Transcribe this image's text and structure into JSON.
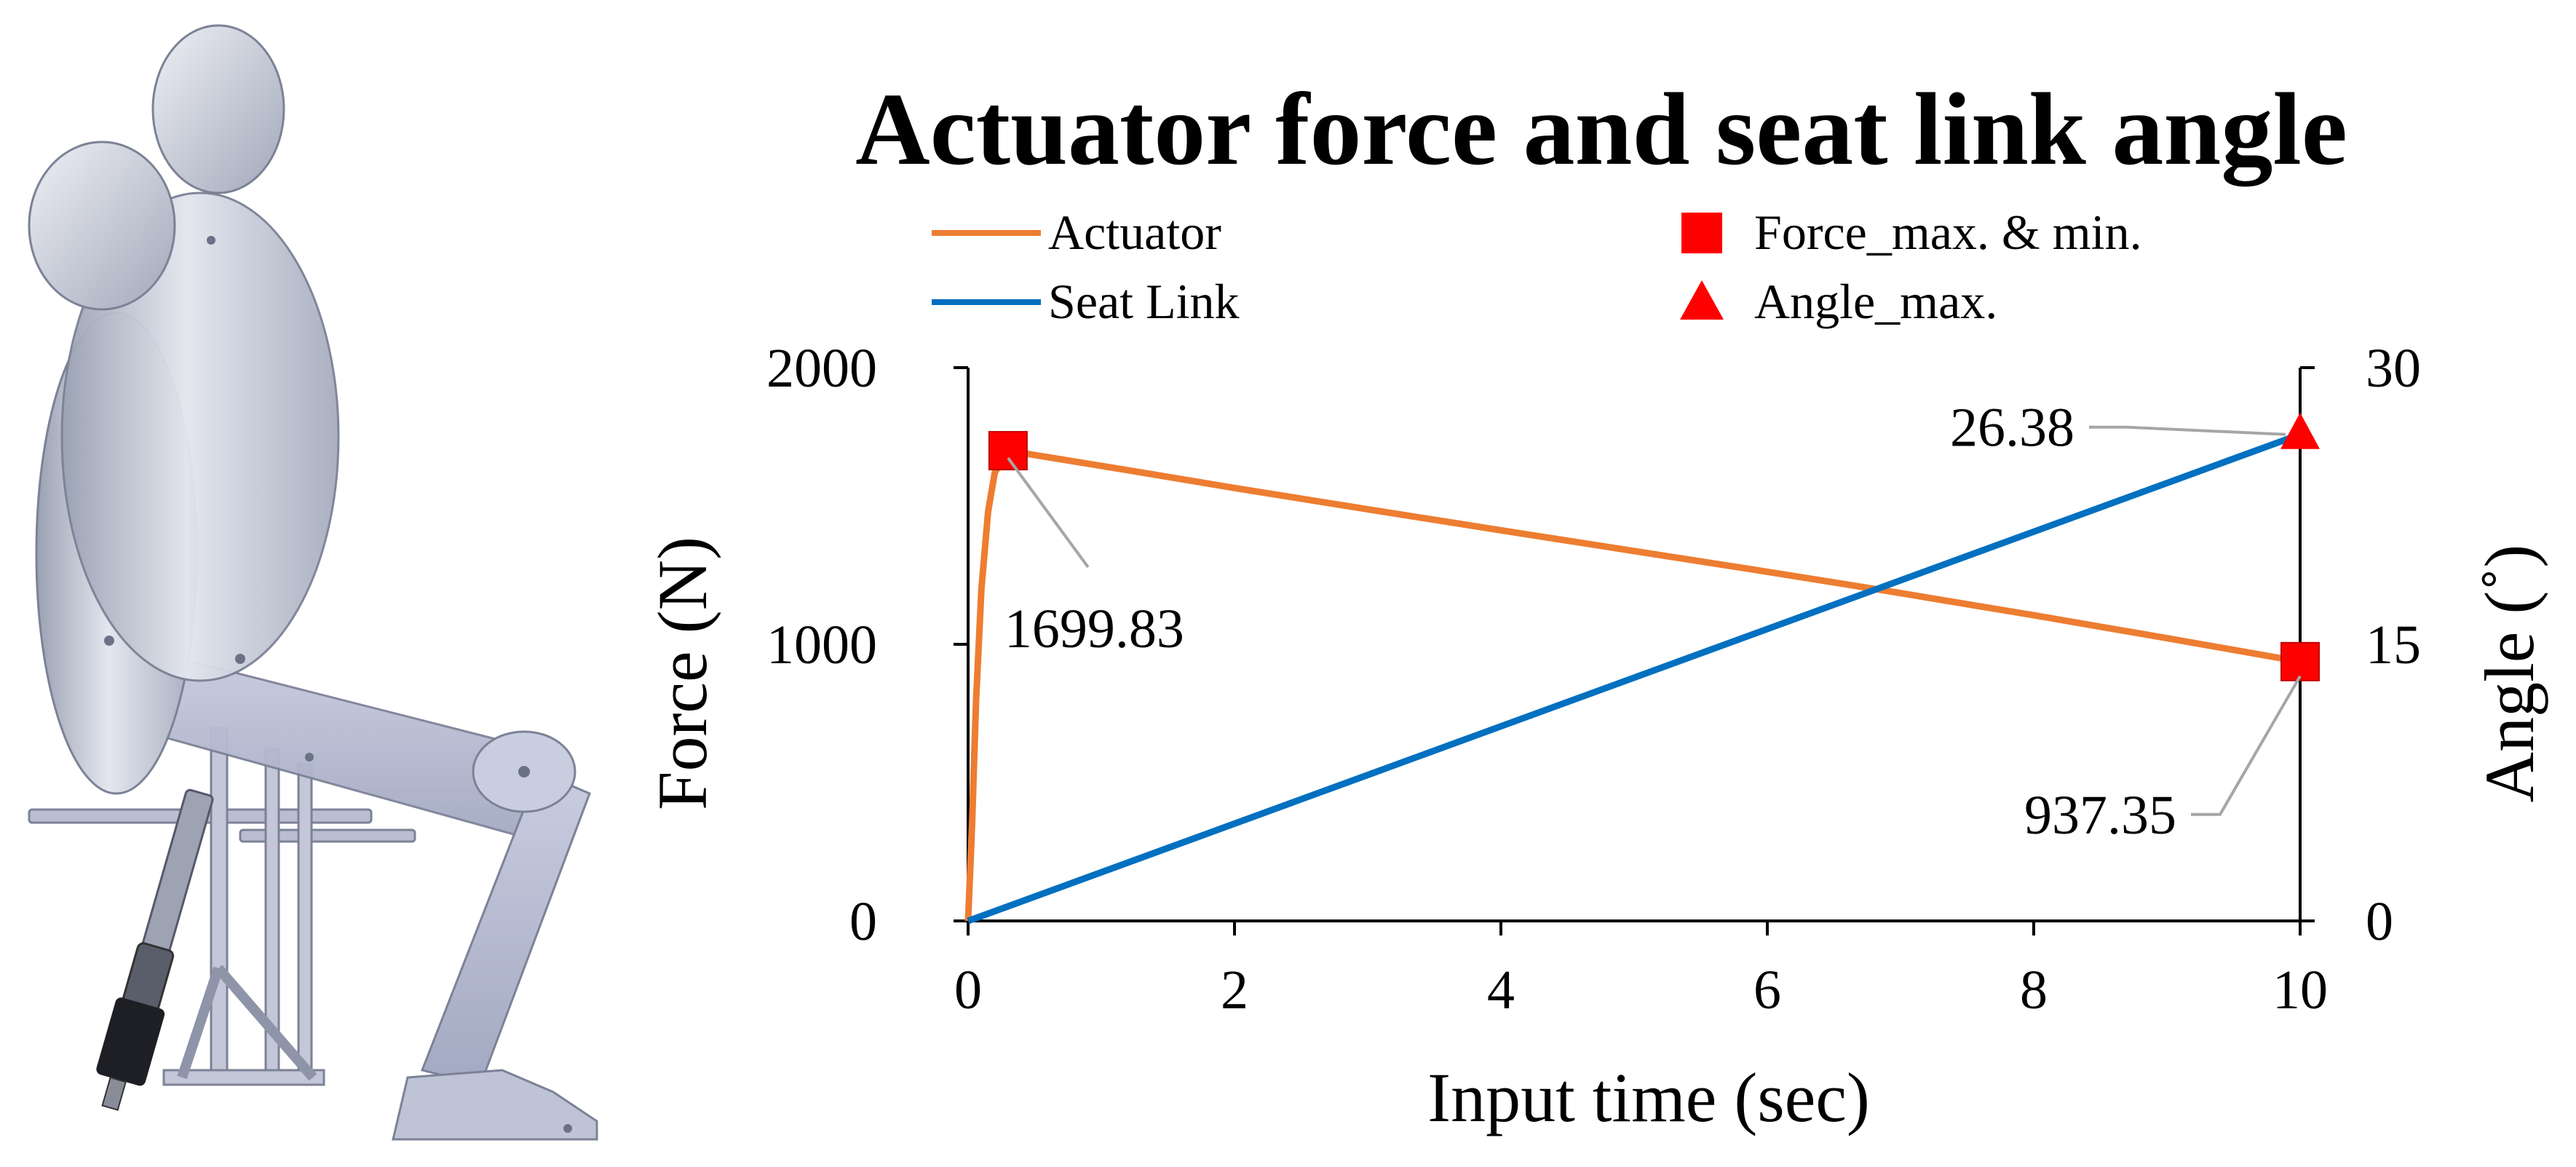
{
  "chart_data": {
    "type": "line",
    "title": "Actuator force and seat link angle",
    "xlabel": "Input time (sec)",
    "ylabel_left": "Force (N)",
    "ylabel_right": "Angle (˚)",
    "xlim": [
      0,
      10
    ],
    "ylim_left": [
      0,
      2000
    ],
    "ylim_right": [
      0,
      30
    ],
    "x_ticks": [
      0,
      2,
      4,
      6,
      8,
      10
    ],
    "x_tick_labels": [
      "0",
      "2",
      "4",
      "6",
      "8",
      "10"
    ],
    "y_left_ticks": [
      0,
      1000,
      2000
    ],
    "y_left_tick_labels": [
      "0",
      "1000",
      "2000"
    ],
    "y_right_ticks": [
      0,
      15,
      30
    ],
    "y_right_tick_labels": [
      "0",
      "15",
      "30"
    ],
    "grid": false,
    "legend_position": "top",
    "series": [
      {
        "name": "Actuator",
        "axis": "left",
        "color": "#ED7D31",
        "points": [
          [
            0,
            0
          ],
          [
            0.03,
            350
          ],
          [
            0.06,
            800
          ],
          [
            0.1,
            1200
          ],
          [
            0.15,
            1480
          ],
          [
            0.2,
            1620
          ],
          [
            0.3,
            1699.83
          ],
          [
            1,
            1645
          ],
          [
            2,
            1565
          ],
          [
            3,
            1488
          ],
          [
            4,
            1412
          ],
          [
            5,
            1337
          ],
          [
            6,
            1262
          ],
          [
            7,
            1185
          ],
          [
            8,
            1105
          ],
          [
            9,
            1022
          ],
          [
            10,
            937.35
          ]
        ]
      },
      {
        "name": "Seat Link",
        "axis": "right",
        "color": "#0070C0",
        "points": [
          [
            0,
            0
          ],
          [
            10,
            26.38
          ]
        ]
      }
    ],
    "markers": [
      {
        "name": "Force_max. & min.",
        "shape": "square",
        "color": "#FF0000",
        "axis": "left",
        "points": [
          [
            0.3,
            1699.83
          ],
          [
            10,
            937.35
          ]
        ]
      },
      {
        "name": "Angle_max.",
        "shape": "triangle",
        "color": "#FF0000",
        "axis": "right",
        "points": [
          [
            10,
            26.38
          ]
        ]
      }
    ],
    "annotations": [
      {
        "text": "1699.83",
        "x": 0.3,
        "y": 1699.83,
        "axis": "left",
        "leader": "down-right"
      },
      {
        "text": "937.35",
        "x": 10,
        "y": 937.35,
        "axis": "left",
        "leader": "down-left"
      },
      {
        "text": "26.38",
        "x": 10,
        "y": 26.38,
        "axis": "right",
        "leader": "left"
      }
    ],
    "legend": [
      {
        "label": "Actuator",
        "kind": "line",
        "color": "#ED7D31"
      },
      {
        "label": "Force_max. & min.",
        "kind": "square",
        "color": "#FF0000"
      },
      {
        "label": "Seat Link",
        "kind": "line",
        "color": "#0070C0"
      },
      {
        "label": "Angle_max.",
        "kind": "triangle",
        "color": "#FF0000"
      }
    ]
  },
  "illustration": {
    "description_icon": "seated-human-model-with-exoskeleton-icon"
  }
}
